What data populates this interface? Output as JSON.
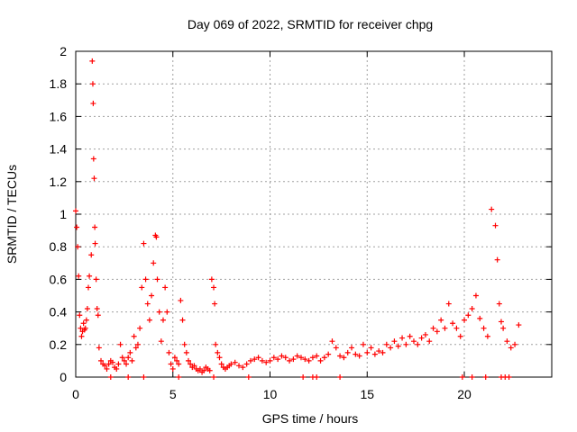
{
  "chart_data": {
    "type": "scatter",
    "title": "Day 069 of 2022, SRMTID for receiver chpg",
    "xlabel": "GPS time / hours",
    "ylabel": "SRMTID / TECUs",
    "xlim": [
      0,
      24.5
    ],
    "ylim": [
      0,
      2
    ],
    "xticks": [
      0,
      5,
      10,
      15,
      20
    ],
    "xtick_labels": [
      "0",
      "5",
      "10",
      "15",
      "20"
    ],
    "yticks": [
      0,
      0.2,
      0.4,
      0.6,
      0.8,
      1,
      1.2,
      1.4,
      1.6,
      1.8,
      2
    ],
    "ytick_labels": [
      "0",
      "0.2",
      "0.4",
      "0.6",
      "0.8",
      "1",
      "1.2",
      "1.4",
      "1.6",
      "1.8",
      "2"
    ],
    "grid": true,
    "marker": "+",
    "series_color": "#ff0000",
    "series": [
      {
        "name": "SRMTID",
        "x": [
          0.0,
          0.05,
          0.1,
          0.15,
          0.2,
          0.25,
          0.3,
          0.35,
          0.4,
          0.45,
          0.5,
          0.55,
          0.6,
          0.65,
          0.7,
          0.8,
          0.85,
          0.88,
          0.9,
          0.92,
          0.95,
          0.98,
          1.0,
          1.05,
          1.1,
          1.15,
          1.2,
          1.3,
          1.4,
          1.5,
          1.6,
          1.7,
          1.8,
          1.9,
          2.0,
          2.1,
          2.2,
          2.3,
          2.4,
          2.5,
          2.6,
          2.7,
          2.8,
          2.9,
          3.0,
          3.1,
          3.2,
          3.3,
          3.4,
          3.5,
          3.6,
          3.7,
          3.8,
          3.9,
          4.0,
          4.1,
          4.15,
          4.2,
          4.3,
          4.4,
          4.5,
          4.6,
          4.7,
          4.8,
          4.9,
          5.0,
          5.1,
          5.2,
          5.3,
          5.4,
          5.5,
          5.6,
          5.7,
          5.8,
          5.9,
          6.0,
          6.1,
          6.2,
          6.3,
          6.4,
          6.5,
          6.6,
          6.7,
          6.8,
          6.9,
          7.0,
          7.1,
          7.15,
          7.2,
          7.3,
          7.4,
          7.5,
          7.6,
          7.7,
          7.8,
          7.9,
          8.0,
          8.2,
          8.4,
          8.6,
          8.8,
          9.0,
          9.2,
          9.4,
          9.6,
          9.8,
          10.0,
          10.2,
          10.4,
          10.6,
          10.8,
          11.0,
          11.2,
          11.4,
          11.6,
          11.8,
          12.0,
          12.2,
          12.4,
          12.6,
          12.8,
          13.0,
          13.2,
          13.4,
          13.6,
          13.8,
          14.0,
          14.2,
          14.4,
          14.6,
          14.8,
          15.0,
          15.2,
          15.4,
          15.6,
          15.8,
          16.0,
          16.2,
          16.4,
          16.6,
          16.8,
          17.0,
          17.2,
          17.4,
          17.6,
          17.8,
          18.0,
          18.2,
          18.4,
          18.6,
          18.8,
          19.0,
          19.2,
          19.4,
          19.6,
          19.8,
          20.0,
          20.2,
          20.4,
          20.6,
          20.8,
          21.0,
          21.2,
          21.4,
          21.6,
          21.7,
          21.8,
          21.9,
          22.0,
          22.2,
          22.4,
          22.6,
          22.8
        ],
        "y": [
          1.02,
          0.92,
          0.8,
          0.62,
          0.38,
          0.3,
          0.25,
          0.28,
          0.33,
          0.29,
          0.3,
          0.35,
          0.42,
          0.55,
          0.62,
          0.75,
          1.94,
          1.8,
          1.68,
          1.34,
          1.22,
          0.92,
          0.82,
          0.6,
          0.42,
          0.38,
          0.18,
          0.1,
          0.08,
          0.07,
          0.05,
          0.08,
          0.1,
          0.09,
          0.06,
          0.05,
          0.08,
          0.2,
          0.12,
          0.1,
          0.08,
          0.12,
          0.15,
          0.1,
          0.25,
          0.18,
          0.2,
          0.3,
          0.55,
          0.82,
          0.6,
          0.45,
          0.35,
          0.5,
          0.7,
          0.87,
          0.86,
          0.6,
          0.4,
          0.22,
          0.35,
          0.55,
          0.4,
          0.15,
          0.08,
          0.05,
          0.12,
          0.1,
          0.08,
          0.47,
          0.35,
          0.2,
          0.15,
          0.1,
          0.08,
          0.06,
          0.07,
          0.05,
          0.04,
          0.05,
          0.03,
          0.04,
          0.06,
          0.05,
          0.04,
          0.6,
          0.55,
          0.45,
          0.2,
          0.15,
          0.12,
          0.08,
          0.06,
          0.05,
          0.06,
          0.07,
          0.08,
          0.09,
          0.07,
          0.06,
          0.08,
          0.1,
          0.11,
          0.12,
          0.1,
          0.09,
          0.1,
          0.12,
          0.11,
          0.13,
          0.12,
          0.1,
          0.11,
          0.13,
          0.12,
          0.11,
          0.1,
          0.12,
          0.13,
          0.1,
          0.12,
          0.14,
          0.22,
          0.18,
          0.13,
          0.12,
          0.15,
          0.18,
          0.14,
          0.13,
          0.2,
          0.15,
          0.18,
          0.14,
          0.16,
          0.15,
          0.2,
          0.18,
          0.22,
          0.19,
          0.24,
          0.2,
          0.25,
          0.22,
          0.2,
          0.24,
          0.26,
          0.22,
          0.3,
          0.28,
          0.35,
          0.3,
          0.45,
          0.33,
          0.3,
          0.25,
          0.35,
          0.38,
          0.42,
          0.5,
          0.36,
          0.3,
          0.25,
          1.03,
          0.93,
          0.72,
          0.45,
          0.34,
          0.3,
          0.22,
          0.18,
          0.2,
          0.32
        ]
      }
    ],
    "baseline_x": [
      1.8,
      2.7,
      3.5,
      5.3,
      7.1,
      8.9,
      11.7,
      12.2,
      12.4,
      13.6,
      19.9,
      20.4,
      21.1,
      21.9,
      22.1,
      22.3
    ]
  }
}
